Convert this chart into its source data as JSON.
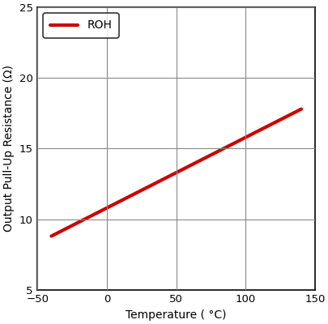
{
  "title": "",
  "xlabel": "Temperature ( °C)",
  "ylabel": "Output Pull-Up Resistance (Ω)",
  "legend_label": "ROH",
  "line_color": "#cc0000",
  "line_width": 3.0,
  "xlim": [
    -50,
    150
  ],
  "ylim": [
    5,
    25
  ],
  "xticks": [
    -50,
    0,
    50,
    100,
    150
  ],
  "yticks": [
    5,
    10,
    15,
    20,
    25
  ],
  "grid_color_major": "#aaaaaa",
  "grid_color_minor": "#aaaaaa",
  "x_data": [
    -40,
    140
  ],
  "y_data": [
    8.8,
    17.8
  ],
  "background_color": "#ffffff",
  "figsize": [
    4.06,
    4.0
  ],
  "dpi": 100
}
